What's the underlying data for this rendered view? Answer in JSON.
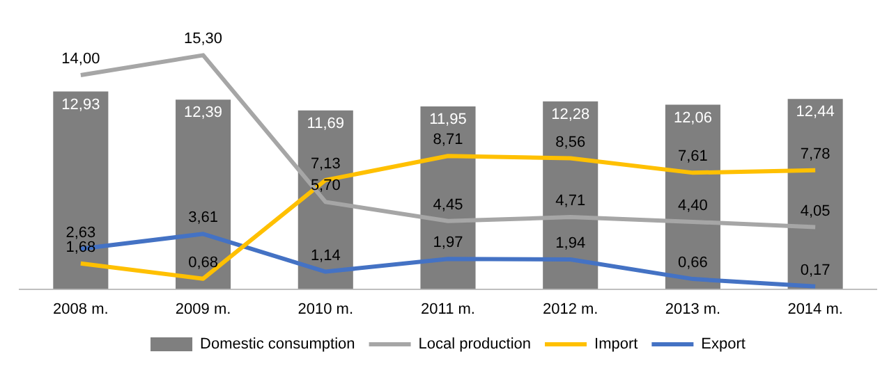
{
  "chart_data": {
    "type": "bar",
    "categories": [
      "2008 m.",
      "2009 m.",
      "2010 m.",
      "2011 m.",
      "2012 m.",
      "2013 m.",
      "2014 m."
    ],
    "series": [
      {
        "name": "Domestic consumption",
        "color": "#7f7f7f",
        "values": [
          12.93,
          12.39,
          11.69,
          11.95,
          12.28,
          12.06,
          12.44
        ],
        "value_labels": [
          "12,93",
          "12,39",
          "11,69",
          "11,95",
          "12,28",
          "12,06",
          "12,44"
        ]
      },
      {
        "name": "Local production",
        "type": "line",
        "color": "#a6a6a6",
        "values": [
          14.0,
          15.3,
          5.7,
          4.45,
          4.71,
          4.4,
          4.05
        ],
        "value_labels": [
          "14,00",
          "15,30",
          "5,70",
          "4,45",
          "4,71",
          "4,40",
          "4,05"
        ]
      },
      {
        "name": "Import",
        "type": "line",
        "color": "#ffc000",
        "values": [
          1.68,
          0.68,
          7.13,
          8.71,
          8.56,
          7.61,
          7.78
        ],
        "value_labels": [
          "1,68",
          "0,68",
          "7,13",
          "8,71",
          "8,56",
          "7,61",
          "7,78"
        ]
      },
      {
        "name": "Export",
        "type": "line",
        "color": "#4472c4",
        "values": [
          2.63,
          3.61,
          1.14,
          1.97,
          1.94,
          0.66,
          0.17
        ],
        "value_labels": [
          "2,63",
          "3,61",
          "1,14",
          "1,97",
          "1,94",
          "0,66",
          "0,17"
        ]
      }
    ],
    "grid": false,
    "legend": "bottom",
    "marker": "none"
  }
}
